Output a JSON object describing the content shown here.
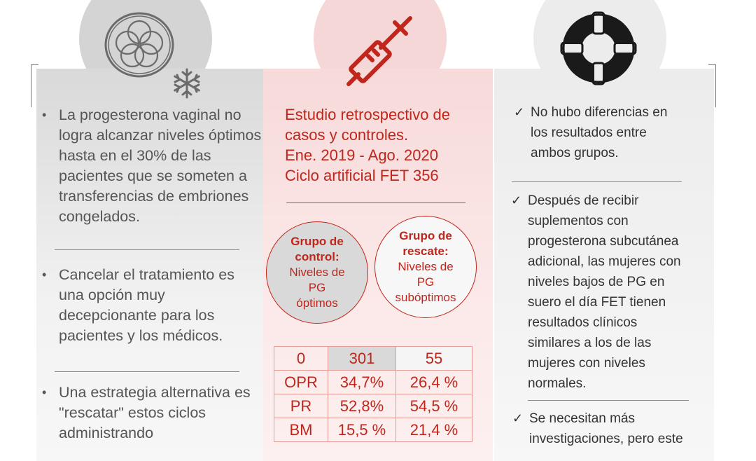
{
  "left": {
    "bullets": [
      "La progesterona vaginal no logra alcanzar niveles óptimos hasta en el 30% de las pacientes que se someten a transferencias de embriones congelados.",
      "Cancelar el tratamiento es una opción muy decepcionante para los pacientes y los médicos.",
      "Una estrategia alternativa es \"rescatar\" estos ciclos administrando"
    ],
    "bullet_symbol": "•"
  },
  "middle": {
    "study_lines": [
      "Estudio retrospectivo de",
      "casos y controles.",
      "Ene. 2019 - Ago. 2020",
      "Ciclo artificial FET 356"
    ],
    "group_control": {
      "title_1": "Grupo de",
      "title_2": "control:",
      "desc_1": "Niveles de",
      "desc_2": "PG",
      "desc_3": "óptimos"
    },
    "group_rescue": {
      "title_1": "Grupo de",
      "title_2": "rescate:",
      "desc_1": "Niveles de",
      "desc_2": "PG",
      "desc_3": "subóptimos"
    },
    "table": [
      [
        "0",
        "301",
        "55"
      ],
      [
        "OPR",
        "34,7%",
        "26,4 %"
      ],
      [
        "PR",
        "52,8%",
        "54,5 %"
      ],
      [
        "BM",
        "15,5 %",
        "21,4 %"
      ]
    ]
  },
  "right": {
    "check_symbol": "✓",
    "items": [
      [
        "No hubo diferencias en",
        "los resultados entre",
        "ambos grupos."
      ],
      [
        "Después de recibir",
        "suplementos con",
        "progesterona subcutánea",
        "adicional, las mujeres con",
        "niveles bajos de PG en",
        "suero el día FET tienen",
        "resultados clínicos",
        "similares a los de las",
        "mujeres con niveles",
        "normales."
      ],
      [
        "Se necesitan más",
        "investigaciones, pero este"
      ]
    ]
  },
  "colors": {
    "accent_red": "#c0261b",
    "left_panel": "#d9d9d9",
    "middle_panel": "#f7dada",
    "right_panel": "#ececec"
  },
  "icons": [
    "embryo-cells-icon",
    "snowflake-icon",
    "syringe-icon",
    "lifebuoy-icon"
  ]
}
